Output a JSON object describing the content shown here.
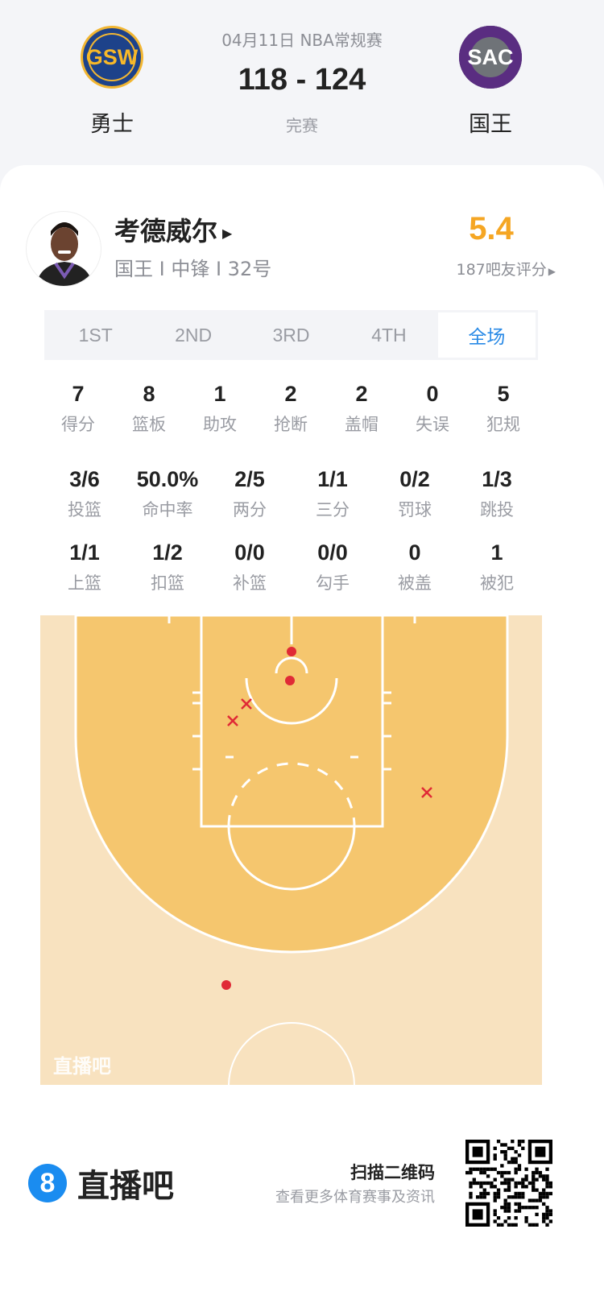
{
  "match": {
    "date_type": "04月11日 NBA常规赛",
    "score": "118 - 124",
    "status": "完赛",
    "home": {
      "abbr": "GSW",
      "name": "勇士"
    },
    "away": {
      "abbr": "SAC",
      "name": "国王"
    }
  },
  "player": {
    "name": "考德威尔",
    "info": "国王 I 中锋 I 32号",
    "rating": "5.4",
    "rating_label": "187吧友评分"
  },
  "tabs": [
    {
      "label": "1ST"
    },
    {
      "label": "2ND"
    },
    {
      "label": "3RD"
    },
    {
      "label": "4TH"
    },
    {
      "label": "全场",
      "selected": true
    }
  ],
  "stats_row1": [
    {
      "v": "7",
      "l": "得分"
    },
    {
      "v": "8",
      "l": "篮板"
    },
    {
      "v": "1",
      "l": "助攻"
    },
    {
      "v": "2",
      "l": "抢断"
    },
    {
      "v": "2",
      "l": "盖帽"
    },
    {
      "v": "0",
      "l": "失误"
    },
    {
      "v": "5",
      "l": "犯规"
    }
  ],
  "stats_row2": [
    {
      "v": "3/6",
      "l": "投篮"
    },
    {
      "v": "50.0%",
      "l": "命中率"
    },
    {
      "v": "2/5",
      "l": "两分"
    },
    {
      "v": "1/1",
      "l": "三分"
    },
    {
      "v": "0/2",
      "l": "罚球"
    },
    {
      "v": "1/3",
      "l": "跳投"
    }
  ],
  "stats_row3": [
    {
      "v": "1/1",
      "l": "上篮"
    },
    {
      "v": "1/2",
      "l": "扣篮"
    },
    {
      "v": "0/0",
      "l": "补篮"
    },
    {
      "v": "0/0",
      "l": "勾手"
    },
    {
      "v": "0",
      "l": "被盖"
    },
    {
      "v": "1",
      "l": "被犯"
    }
  ],
  "shot_chart": {
    "watermark": "直播吧",
    "shots": [
      "made",
      "made",
      "made",
      "missed",
      "missed",
      "missed"
    ],
    "colors": {
      "made": "#e02a36",
      "missed": "#e02a36",
      "court_inner": "#f5c66e",
      "court_outer": "#f8e2bf"
    }
  },
  "footer": {
    "brand": "直播吧",
    "brand_badge": "8",
    "scan": "扫描二维码",
    "scan_sub": "查看更多体育赛事及资讯"
  },
  "colors": {
    "accent": "#2a8ae6",
    "rating": "#f5a623"
  }
}
